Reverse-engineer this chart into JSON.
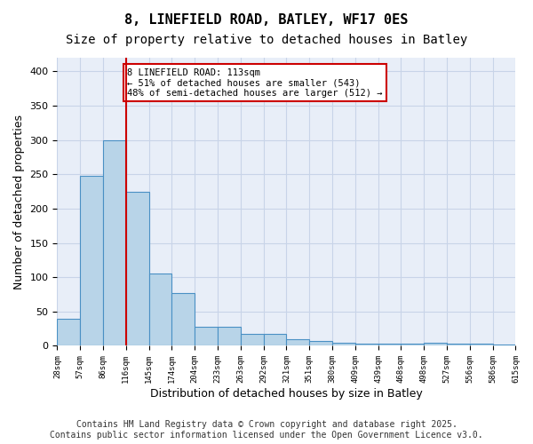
{
  "title1": "8, LINEFIELD ROAD, BATLEY, WF17 0ES",
  "title2": "Size of property relative to detached houses in Batley",
  "xlabel": "Distribution of detached houses by size in Batley",
  "ylabel": "Number of detached properties",
  "bar_values": [
    40,
    248,
    300,
    225,
    106,
    77,
    28,
    28,
    17,
    17,
    10,
    7,
    4,
    3,
    3,
    3,
    4,
    3,
    3,
    2
  ],
  "categories": [
    "28sqm",
    "57sqm",
    "86sqm",
    "116sqm",
    "145sqm",
    "174sqm",
    "204sqm",
    "233sqm",
    "263sqm",
    "292sqm",
    "321sqm",
    "351sqm",
    "380sqm",
    "409sqm",
    "439sqm",
    "468sqm",
    "498sqm",
    "527sqm",
    "556sqm",
    "586sqm"
  ],
  "extra_tick": "615sqm",
  "bar_color": "#b8d4e8",
  "bar_edge_color": "#4a90c4",
  "vline_x": 3,
  "vline_color": "#cc0000",
  "annotation_text": "8 LINEFIELD ROAD: 113sqm\n← 51% of detached houses are smaller (543)\n48% of semi-detached houses are larger (512) →",
  "annotation_box_color": "#ffffff",
  "annotation_box_edge": "#cc0000",
  "annotation_fontsize": 7.5,
  "ylim": [
    0,
    420
  ],
  "yticks": [
    0,
    50,
    100,
    150,
    200,
    250,
    300,
    350,
    400
  ],
  "grid_color": "#c8d4e8",
  "bg_color": "#e8eef8",
  "footer1": "Contains HM Land Registry data © Crown copyright and database right 2025.",
  "footer2": "Contains public sector information licensed under the Open Government Licence v3.0.",
  "title_fontsize": 11,
  "subtitle_fontsize": 10,
  "xlabel_fontsize": 9,
  "ylabel_fontsize": 9,
  "footer_fontsize": 7
}
